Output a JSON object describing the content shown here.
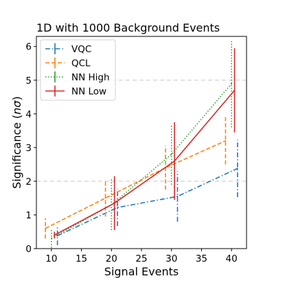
{
  "chart_data": {
    "type": "line",
    "title": "1D with 1000 Background Events",
    "xlabel": "Signal Events",
    "ylabel": "Significance (nσ)",
    "ylabel_parts": {
      "pre": "Significance (",
      "italic": "nσ",
      "post": ")"
    },
    "xlim": [
      7.5,
      42.5
    ],
    "ylim": [
      0,
      6.3
    ],
    "xticks": [
      10,
      15,
      20,
      25,
      30,
      35,
      40
    ],
    "yticks": [
      0,
      1,
      2,
      3,
      4,
      5,
      6
    ],
    "reference_lines": [
      2,
      5
    ],
    "grid": false,
    "legend_position": "top-left",
    "series": [
      {
        "name": "VQC",
        "color": "#1f77b4",
        "dash": "dashdot",
        "x": [
          11,
          21,
          31,
          41
        ],
        "y": [
          0.38,
          1.22,
          1.55,
          2.38
        ],
        "err": [
          0.28,
          0.55,
          0.75,
          0.85
        ]
      },
      {
        "name": "QCL",
        "color": "#ff7f0e",
        "dash": "dashed",
        "x": [
          9,
          19,
          29,
          39
        ],
        "y": [
          0.6,
          1.5,
          2.4,
          3.2
        ],
        "err": [
          0.3,
          0.55,
          0.65,
          0.7
        ]
      },
      {
        "name": "NN High",
        "color": "#2ca02c",
        "dash": "dotted",
        "x": [
          10,
          20,
          30,
          40
        ],
        "y": [
          0.3,
          1.3,
          2.8,
          4.9
        ],
        "err": [
          0.27,
          0.75,
          0.9,
          1.3
        ]
      },
      {
        "name": "NN Low",
        "color": "#d62728",
        "dash": "solid",
        "x": [
          10.5,
          20.5,
          30.5,
          40.5
        ],
        "y": [
          0.4,
          1.35,
          2.6,
          4.7
        ],
        "err": [
          0.1,
          0.8,
          1.15,
          1.25
        ]
      }
    ]
  }
}
